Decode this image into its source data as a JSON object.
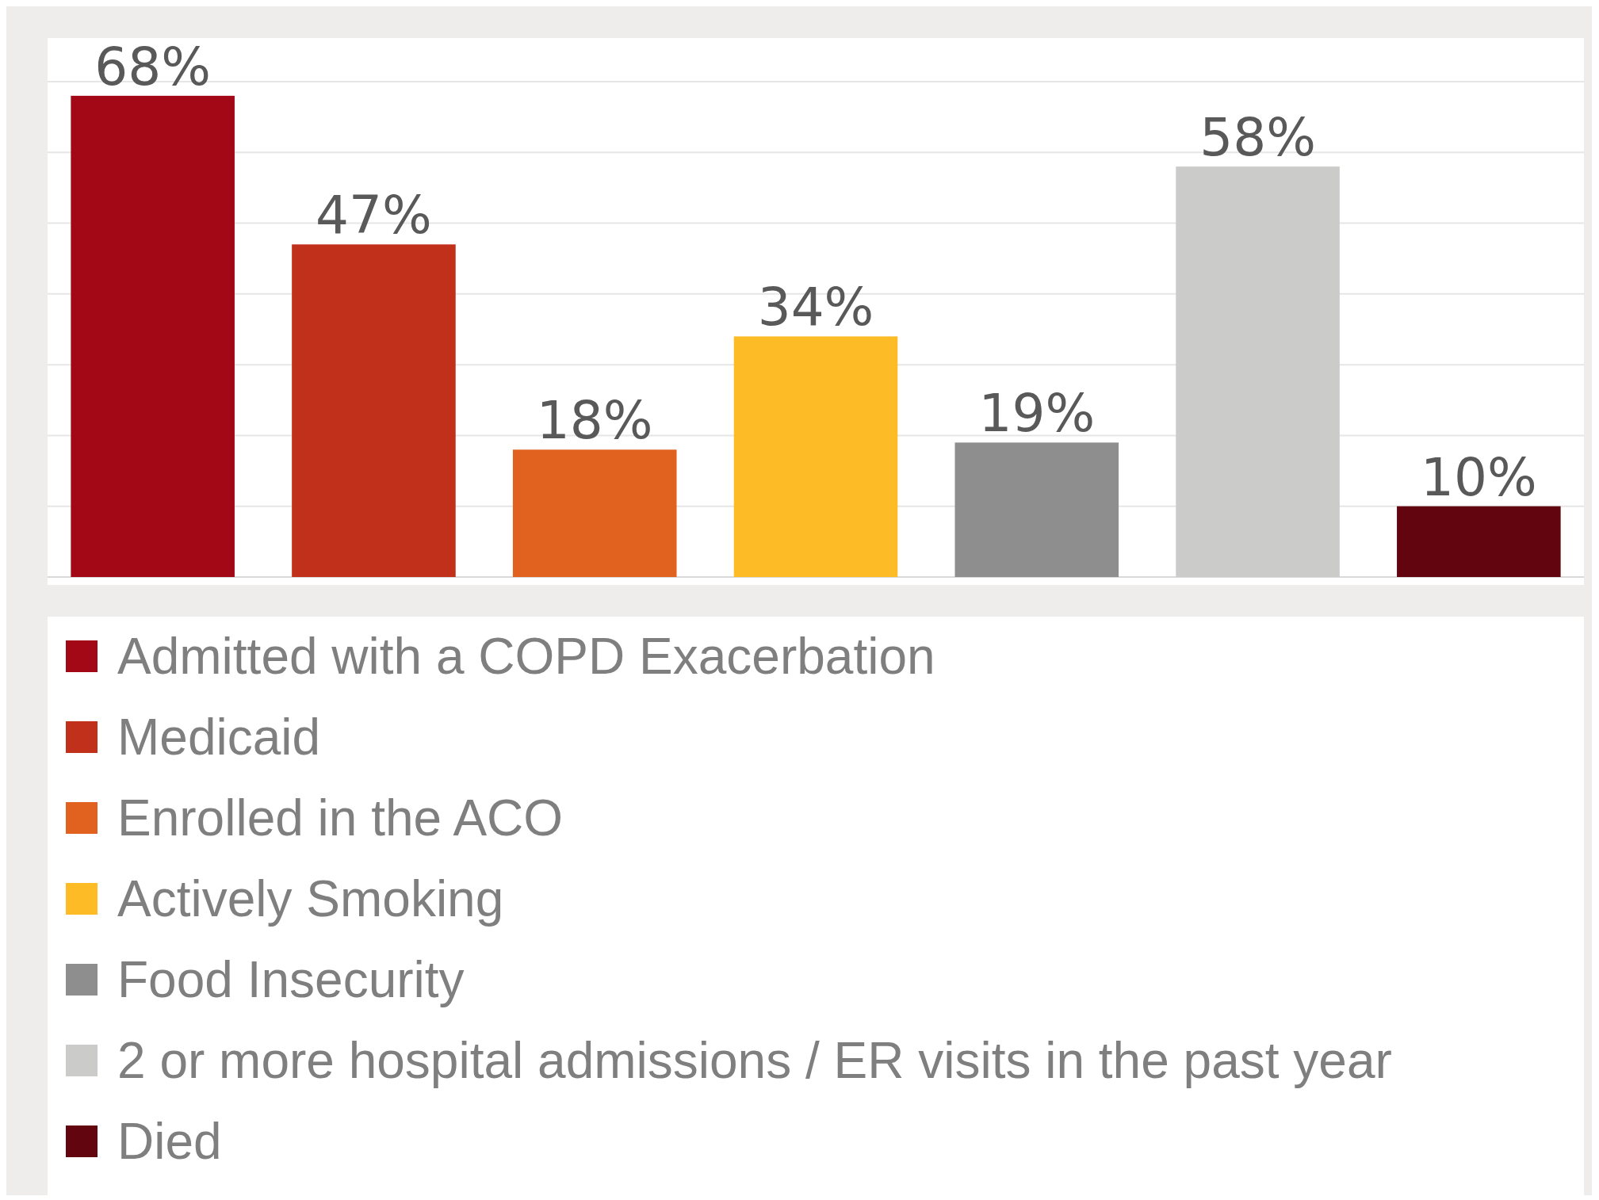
{
  "chart_data": {
    "type": "bar",
    "stacked": true,
    "categories": [
      null,
      null,
      null,
      null,
      null,
      null,
      null
    ],
    "series": [
      {
        "name": "Admitted with a COPD Exacerbation",
        "color": "#a20816",
        "values": [
          68,
          null,
          null,
          null,
          null,
          null,
          null
        ],
        "value_labels": [
          "68%",
          null,
          null,
          null,
          null,
          null,
          null
        ]
      },
      {
        "name": "Medicaid",
        "color": "#c0301a",
        "values": [
          null,
          47,
          null,
          null,
          null,
          null,
          null
        ],
        "value_labels": [
          null,
          "47%",
          null,
          null,
          null,
          null,
          null
        ]
      },
      {
        "name": "Enrolled in the ACO",
        "color": "#e0621e",
        "values": [
          null,
          null,
          18,
          null,
          null,
          null,
          null
        ],
        "value_labels": [
          null,
          null,
          "18%",
          null,
          null,
          null,
          null
        ]
      },
      {
        "name": "Actively Smoking",
        "color": "#fdbb26",
        "values": [
          null,
          null,
          null,
          34,
          null,
          null,
          null
        ],
        "value_labels": [
          null,
          null,
          null,
          "34%",
          null,
          null,
          null
        ]
      },
      {
        "name": "Food Insecurity",
        "color": "#8e8e8e",
        "values": [
          null,
          null,
          null,
          null,
          19,
          null,
          null
        ],
        "value_labels": [
          null,
          null,
          null,
          null,
          "19%",
          null,
          null
        ]
      },
      {
        "name": "2 or more hospital admissions / ER visits in the past year",
        "color": "#cbcbc9",
        "values": [
          null,
          null,
          null,
          null,
          null,
          58,
          null
        ],
        "value_labels": [
          null,
          null,
          null,
          null,
          null,
          "58%",
          null
        ]
      },
      {
        "name": "Died",
        "color": "#63050e",
        "values": [
          null,
          null,
          null,
          null,
          null,
          null,
          10
        ],
        "value_labels": [
          null,
          null,
          null,
          null,
          null,
          null,
          "10%"
        ]
      }
    ],
    "ylim": [
      0,
      70
    ],
    "yticks": [
      {
        "value": 0,
        "label": null
      },
      {
        "value": 10,
        "label": null
      },
      {
        "value": 20,
        "label": null
      },
      {
        "value": 30,
        "label": null
      },
      {
        "value": 40,
        "label": null
      },
      {
        "value": 50,
        "label": null
      },
      {
        "value": 60,
        "label": null
      },
      {
        "value": 70,
        "label": null
      }
    ],
    "grid": "y",
    "legend": "bottom"
  }
}
